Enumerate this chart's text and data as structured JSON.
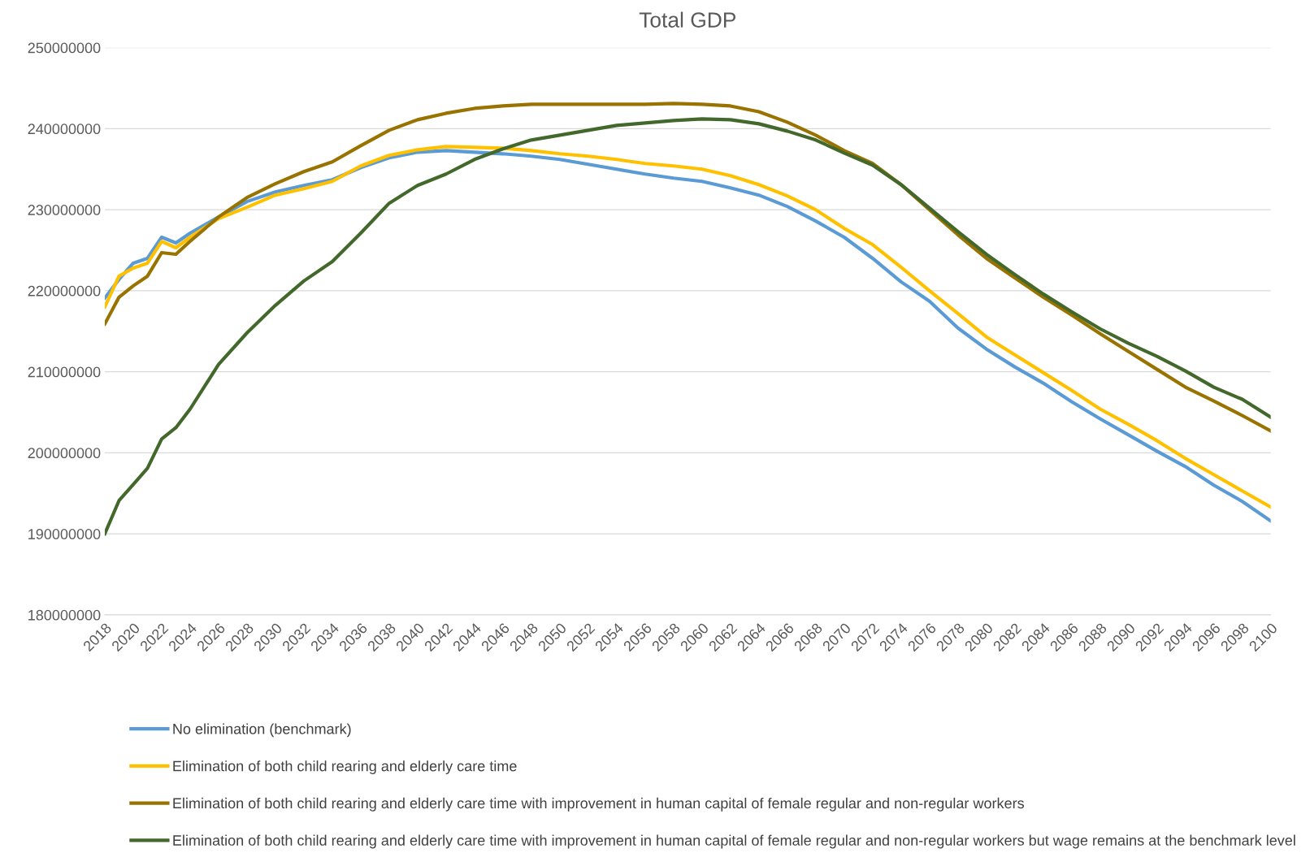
{
  "chart_data": {
    "type": "line",
    "title": "Total GDP",
    "x": [
      2018,
      2019,
      2020,
      2021,
      2022,
      2023,
      2024,
      2026,
      2028,
      2030,
      2032,
      2034,
      2036,
      2038,
      2040,
      2042,
      2044,
      2046,
      2048,
      2050,
      2052,
      2054,
      2056,
      2058,
      2060,
      2062,
      2064,
      2066,
      2068,
      2070,
      2072,
      2074,
      2076,
      2078,
      2080,
      2082,
      2084,
      2086,
      2088,
      2090,
      2092,
      2094,
      2096,
      2098,
      2100
    ],
    "series": [
      {
        "name": "No elimination (benchmark)",
        "color": "#5b9bd5",
        "values": [
          219100000,
          221400000,
          223400000,
          224000000,
          226600000,
          225900000,
          227100000,
          229100000,
          231000000,
          232200000,
          233000000,
          233700000,
          235200000,
          236400000,
          237100000,
          237300000,
          237100000,
          236900000,
          236600000,
          236200000,
          235600000,
          235000000,
          234400000,
          233900000,
          233500000,
          232700000,
          231800000,
          230400000,
          228600000,
          226600000,
          224000000,
          221100000,
          218700000,
          215400000,
          212800000,
          210600000,
          208600000,
          206300000,
          204200000,
          202200000,
          200200000,
          198300000,
          196000000,
          194000000,
          191600000
        ]
      },
      {
        "name": "Elimination of both child rearing and elderly care time",
        "color": "#ffc000",
        "values": [
          218000000,
          221800000,
          222800000,
          223400000,
          226100000,
          225300000,
          226600000,
          228900000,
          230300000,
          231800000,
          232600000,
          233500000,
          235400000,
          236700000,
          237400000,
          237800000,
          237700000,
          237600000,
          237300000,
          236900000,
          236600000,
          236200000,
          235700000,
          235400000,
          235000000,
          234200000,
          233100000,
          231700000,
          230000000,
          227700000,
          225700000,
          222900000,
          220000000,
          217200000,
          214300000,
          212100000,
          209900000,
          207700000,
          205400000,
          203500000,
          201500000,
          199300000,
          197300000,
          195300000,
          193300000
        ]
      },
      {
        "name": "Elimination of both child rearing and elderly care time with improvement in human capital of female regular and non-regular workers",
        "color": "#997300",
        "values": [
          215900000,
          219200000,
          220600000,
          221800000,
          224700000,
          224500000,
          226100000,
          229100000,
          231500000,
          233200000,
          234700000,
          235900000,
          237900000,
          239800000,
          241100000,
          241900000,
          242500000,
          242800000,
          243000000,
          243000000,
          243000000,
          243000000,
          243000000,
          243100000,
          243000000,
          242800000,
          242100000,
          240800000,
          239200000,
          237300000,
          235700000,
          233100000,
          230000000,
          226900000,
          224000000,
          221600000,
          219200000,
          217000000,
          214700000,
          212500000,
          210300000,
          208100000,
          206400000,
          204600000,
          202700000
        ]
      },
      {
        "name": "Elimination of both child rearing and elderly care time with improvement in human capital of female regular and non-regular workers but wage remains at the benchmark level",
        "color": "#43682b",
        "values": [
          190000000,
          194100000,
          196100000,
          198100000,
          201700000,
          203100000,
          205400000,
          210900000,
          214800000,
          218200000,
          221200000,
          223600000,
          227100000,
          230800000,
          233000000,
          234400000,
          236200000,
          237500000,
          238600000,
          239200000,
          239800000,
          240400000,
          240700000,
          241000000,
          241200000,
          241100000,
          240600000,
          239700000,
          238600000,
          237000000,
          235500000,
          233100000,
          230200000,
          227300000,
          224500000,
          222000000,
          219600000,
          217400000,
          215300000,
          213500000,
          211900000,
          210100000,
          208100000,
          206600000,
          204400000
        ]
      }
    ],
    "xlim": [
      2018,
      2100
    ],
    "xticks": [
      2018,
      2020,
      2022,
      2024,
      2026,
      2028,
      2030,
      2032,
      2034,
      2036,
      2038,
      2040,
      2042,
      2044,
      2046,
      2048,
      2050,
      2052,
      2054,
      2056,
      2058,
      2060,
      2062,
      2064,
      2066,
      2068,
      2070,
      2072,
      2074,
      2076,
      2078,
      2080,
      2082,
      2084,
      2086,
      2088,
      2090,
      2092,
      2094,
      2096,
      2098,
      2100
    ],
    "ylim": [
      180000000,
      250000000
    ],
    "yticks": [
      180000000,
      190000000,
      200000000,
      210000000,
      220000000,
      230000000,
      240000000,
      250000000
    ],
    "grid": "y",
    "legend": "bottom",
    "marker": "none",
    "line_style": "solid"
  }
}
